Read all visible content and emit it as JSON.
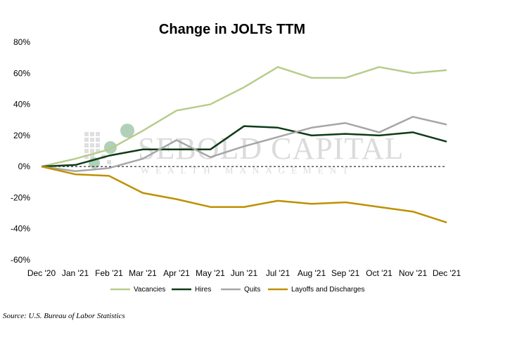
{
  "chart_data": {
    "type": "line",
    "title": "Change in JOLTs TTM",
    "categories": [
      "Dec '20",
      "Jan '21",
      "Feb '21",
      "Mar '21",
      "Apr '21",
      "May '21",
      "Jun '21",
      "Jul '21",
      "Aug '21",
      "Sep '21",
      "Oct '21",
      "Nov '21",
      "Dec '21"
    ],
    "y_ticks": [
      "80%",
      "60%",
      "40%",
      "20%",
      "0%",
      "-20%",
      "-40%",
      "-60%"
    ],
    "ylim": [
      -60,
      80
    ],
    "y_unit": "percent",
    "grid": false,
    "zero_line": "dashed",
    "legend_position": "bottom",
    "series": [
      {
        "name": "Vacancies",
        "color": "#b7cc8a",
        "values": [
          0,
          5,
          11,
          23,
          36,
          40,
          51,
          64,
          57,
          57,
          64,
          60,
          62
        ]
      },
      {
        "name": "Hires",
        "color": "#0f3b17",
        "values": [
          0,
          1,
          7,
          11,
          11,
          11,
          26,
          25,
          20,
          21,
          20,
          22,
          16
        ]
      },
      {
        "name": "Quits",
        "color": "#a6a6a6",
        "values": [
          0,
          -3,
          -1,
          5,
          17,
          6,
          13,
          19,
          25,
          28,
          22,
          32,
          27
        ]
      },
      {
        "name": "Layoffs and Discharges",
        "color": "#bf9000",
        "values": [
          0,
          -5,
          -6,
          -17,
          -21,
          -26,
          -26,
          -22,
          -24,
          -23,
          -26,
          -29,
          -36
        ]
      }
    ]
  },
  "watermark": {
    "name": "SEBOLD CAPITAL",
    "tagline": "WEALTH MANAGEMENT"
  },
  "source": "Source: U.S. Bureau of Labor Statistics"
}
